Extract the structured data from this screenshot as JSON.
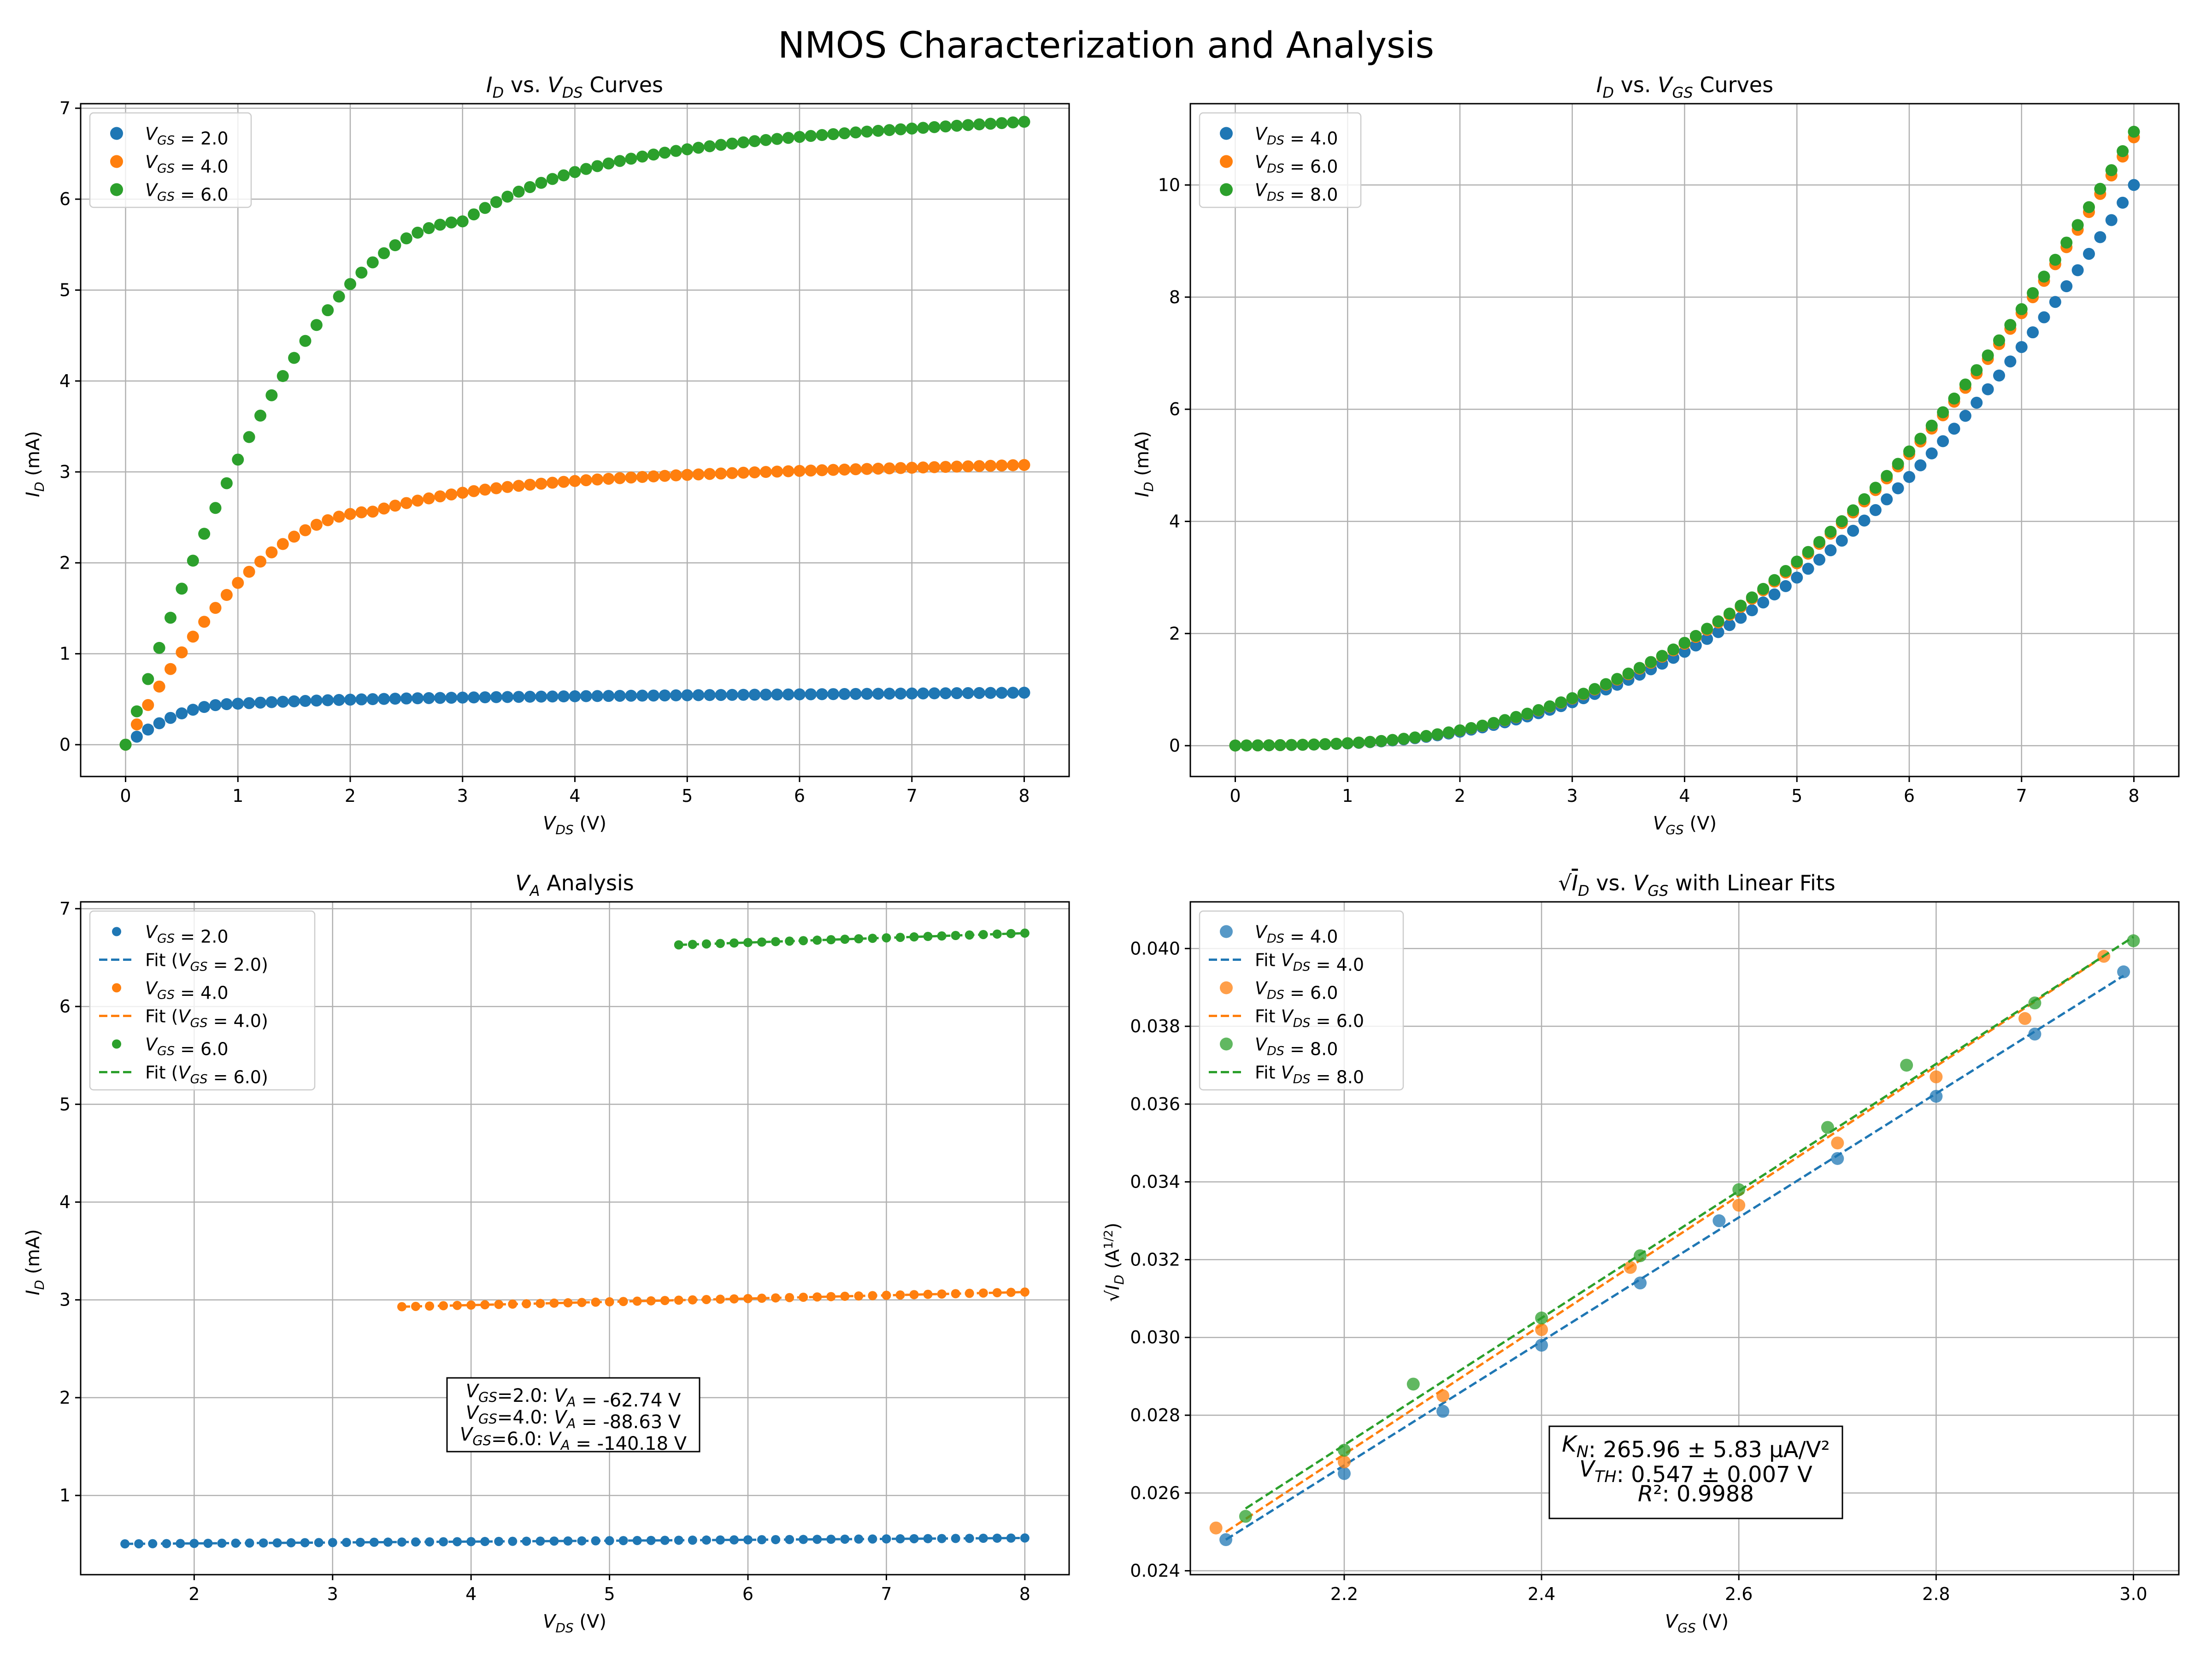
{
  "figure_title": "NMOS Characterization and Analysis",
  "colors": {
    "blue": "#1f77b4",
    "orange": "#ff7f0e",
    "green": "#2ca02c"
  },
  "chart_data": [
    {
      "id": "id_vds",
      "type": "scatter",
      "title": "I_D vs. V_DS Curves",
      "xlabel": "V_DS (V)",
      "ylabel": "I_D (mA)",
      "xlim": [
        -0.4,
        8.4
      ],
      "ylim": [
        -0.35,
        7.05
      ],
      "xticks": [
        0,
        1,
        2,
        3,
        4,
        5,
        6,
        7,
        8
      ],
      "yticks": [
        0,
        1,
        2,
        3,
        4,
        5,
        6,
        7
      ],
      "grid": true,
      "legend_position": "top-left",
      "legend": [
        "V_GS = 2.0",
        "V_GS = 4.0",
        "V_GS = 6.0"
      ],
      "series_meta": [
        {
          "name": "V_GS = 2.0",
          "color": "blue"
        },
        {
          "name": "V_GS = 4.0",
          "color": "orange"
        },
        {
          "name": "V_GS = 6.0",
          "color": "green"
        }
      ],
      "x_range": [
        0,
        8,
        81
      ],
      "model": "id_vds",
      "model_params": [
        {
          "vov": 0.95,
          "isat": 0.5,
          "lambda": 0.018
        },
        {
          "vov": 2.2,
          "isat": 2.85,
          "lambda": 0.01
        },
        {
          "vov": 3.0,
          "isat": 6.35,
          "lambda": 0.01
        }
      ]
    },
    {
      "id": "id_vgs",
      "type": "scatter",
      "title": "I_D vs. V_GS Curves",
      "xlabel": "V_GS (V)",
      "ylabel": "I_D (mA)",
      "xlim": [
        -0.4,
        8.4
      ],
      "ylim": [
        -0.55,
        11.45
      ],
      "xticks": [
        0,
        1,
        2,
        3,
        4,
        5,
        6,
        7,
        8
      ],
      "yticks": [
        0,
        2,
        4,
        6,
        8,
        10
      ],
      "grid": true,
      "legend_position": "top-left",
      "legend": [
        "V_DS = 4.0",
        "V_DS = 6.0",
        "V_DS = 8.0"
      ],
      "series_meta": [
        {
          "name": "V_DS = 4.0",
          "color": "blue",
          "endpoint": 10.0
        },
        {
          "name": "V_DS = 6.0",
          "color": "orange",
          "endpoint": 10.85
        },
        {
          "name": "V_DS = 8.0",
          "color": "green",
          "endpoint": 10.95
        }
      ],
      "x_range": [
        0,
        8,
        81
      ],
      "model": "id_vgs"
    },
    {
      "id": "va_analysis",
      "type": "scatter",
      "title": "V_A Analysis",
      "xlabel": "V_DS (V)",
      "ylabel": "I_D (mA)",
      "xlim": [
        1.18,
        8.32
      ],
      "ylim": [
        0.19,
        7.07
      ],
      "xticks": [
        2,
        3,
        4,
        5,
        6,
        7,
        8
      ],
      "yticks": [
        1,
        2,
        3,
        4,
        5,
        6,
        7
      ],
      "grid": true,
      "legend_position": "top-left",
      "legend": [
        "V_GS = 2.0",
        "Fit (V_GS = 2.0)",
        "V_GS = 4.0",
        "Fit (V_GS = 4.0)",
        "V_GS = 6.0",
        "Fit (V_GS = 6.0)"
      ],
      "series": [
        {
          "name": "V_GS = 2.0",
          "color": "blue",
          "x_range": [
            1.5,
            8.0,
            66
          ],
          "y_start": 0.505,
          "y_end": 0.565
        },
        {
          "name": "V_GS = 4.0",
          "color": "orange",
          "x_range": [
            3.5,
            8.0,
            46
          ],
          "y_start": 2.93,
          "y_end": 3.08
        },
        {
          "name": "V_GS = 6.0",
          "color": "green",
          "x_range": [
            5.5,
            8.0,
            26
          ],
          "y_start": 6.63,
          "y_end": 6.75
        }
      ],
      "annotation": [
        "V_GS=2.0: V_A = -62.74 V",
        "V_GS=4.0: V_A = -88.63 V",
        "V_GS=6.0: V_A = -140.18 V"
      ]
    },
    {
      "id": "sqrt_id",
      "type": "scatter",
      "title": "√I_D vs. V_GS with Linear Fits",
      "xlabel": "V_GS (V)",
      "ylabel": "√I_D (A^1/2)",
      "xlim": [
        2.044,
        3.046
      ],
      "ylim": [
        0.0239,
        0.0412
      ],
      "xticks": [
        2.2,
        2.4,
        2.6,
        2.8,
        3.0
      ],
      "yticks": [
        0.024,
        0.026,
        0.028,
        0.03,
        0.032,
        0.034,
        0.036,
        0.038,
        0.04
      ],
      "grid": true,
      "legend_position": "top-left",
      "legend": [
        "V_DS = 4.0",
        "Fit V_DS = 4.0",
        "V_DS = 6.0",
        "Fit V_DS = 6.0",
        "V_DS = 8.0",
        "Fit V_DS = 8.0"
      ],
      "series": [
        {
          "name": "V_DS = 4.0",
          "color": "blue",
          "points": [
            [
              2.08,
              0.0248
            ],
            [
              2.2,
              0.0265
            ],
            [
              2.3,
              0.0281
            ],
            [
              2.4,
              0.0298
            ],
            [
              2.5,
              0.0314
            ],
            [
              2.58,
              0.033
            ],
            [
              2.7,
              0.0346
            ],
            [
              2.8,
              0.0362
            ],
            [
              2.9,
              0.0378
            ],
            [
              2.99,
              0.0394
            ]
          ],
          "fit": [
            [
              2.08,
              0.0248
            ],
            [
              2.99,
              0.0393
            ]
          ]
        },
        {
          "name": "V_DS = 6.0",
          "color": "orange",
          "points": [
            [
              2.07,
              0.0251
            ],
            [
              2.2,
              0.0268
            ],
            [
              2.3,
              0.0285
            ],
            [
              2.4,
              0.0302
            ],
            [
              2.49,
              0.0318
            ],
            [
              2.6,
              0.0334
            ],
            [
              2.7,
              0.035
            ],
            [
              2.8,
              0.0367
            ],
            [
              2.89,
              0.0382
            ],
            [
              2.97,
              0.0398
            ]
          ],
          "fit": [
            [
              2.08,
              0.025
            ],
            [
              2.97,
              0.0398
            ]
          ]
        },
        {
          "name": "V_DS = 8.0",
          "color": "green",
          "points": [
            [
              2.1,
              0.0254
            ],
            [
              2.2,
              0.0271
            ],
            [
              2.27,
              0.0288
            ],
            [
              2.4,
              0.0305
            ],
            [
              2.5,
              0.0321
            ],
            [
              2.6,
              0.0338
            ],
            [
              2.69,
              0.0354
            ],
            [
              2.77,
              0.037
            ],
            [
              2.9,
              0.0386
            ],
            [
              3.0,
              0.0402
            ]
          ],
          "fit": [
            [
              2.1,
              0.0256
            ],
            [
              3.0,
              0.0403
            ]
          ]
        }
      ],
      "annotation": [
        "K_N: 265.96 ± 5.83 μA/V²",
        "V_TH: 0.547 ± 0.007 V",
        "R²: 0.9988"
      ]
    }
  ]
}
